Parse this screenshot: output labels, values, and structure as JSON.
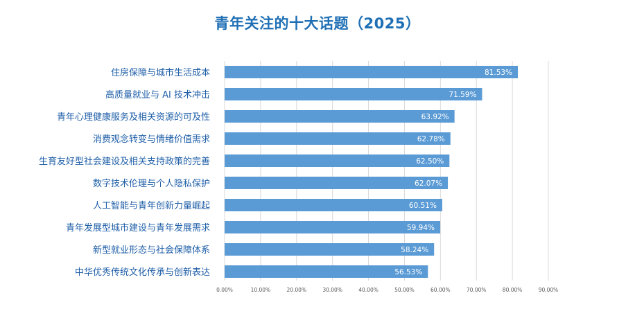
{
  "page_title": "青年关注的十大话题（2025）",
  "chart_data": {
    "type": "bar",
    "orientation": "horizontal",
    "title": "青年关注的十大话题（2025）",
    "categories": [
      "住房保障与城市生活成本",
      "高质量就业与 AI 技术冲击",
      "青年心理健康服务及相关资源的可及性",
      "消费观念转变与情绪价值需求",
      "生育友好型社会建设及相关支持政策的完善",
      "数字技术伦理与个人隐私保护",
      "人工智能与青年创新力量崛起",
      "青年发展型城市建设与青年发展需求",
      "新型就业形态与社会保障体系",
      "中华优秀传统文化传承与创新表达"
    ],
    "values": [
      81.53,
      71.59,
      63.92,
      62.78,
      62.5,
      62.07,
      60.51,
      59.94,
      58.24,
      56.53
    ],
    "value_labels": [
      "81.53%",
      "71.59%",
      "63.92%",
      "62.78%",
      "62.50%",
      "62.07%",
      "60.51%",
      "59.94%",
      "58.24%",
      "56.53%"
    ],
    "x_ticks": [
      "0.00%",
      "10.00%",
      "20.00%",
      "30.00%",
      "40.00%",
      "50.00%",
      "60.00%",
      "70.00%",
      "80.00%",
      "90.00%"
    ],
    "xlim": [
      0,
      90
    ],
    "grid": true,
    "legend": "none",
    "colors": {
      "bar": "#5b9bd5",
      "bar_label": "#ffffff",
      "category_label": "#1f5fa8",
      "title": "#1f6fb5",
      "tick_label": "#555555",
      "grid": "#d9d9d9"
    }
  }
}
